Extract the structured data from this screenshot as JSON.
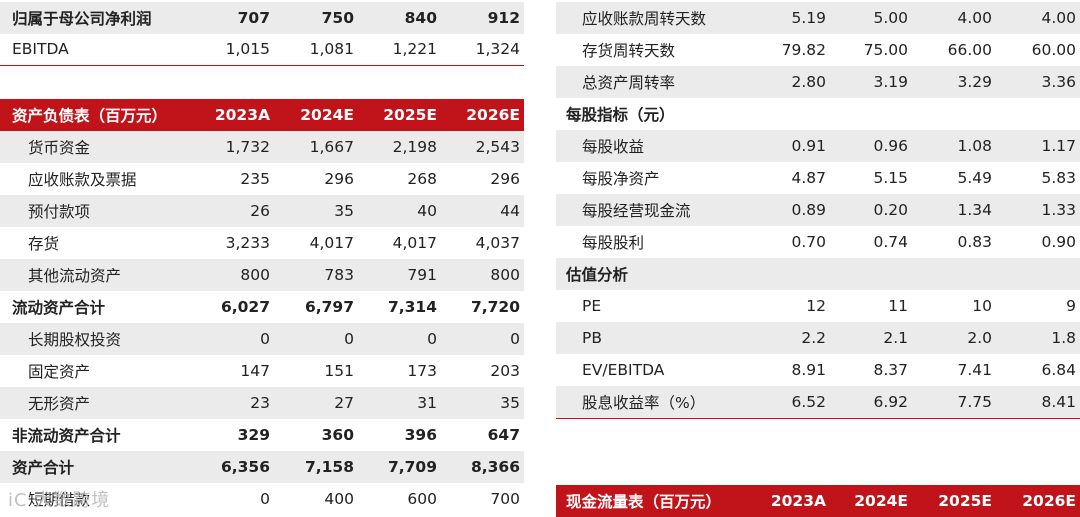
{
  "left": {
    "top_rows": [
      {
        "label": "归属于母公司净利润",
        "values": [
          "707",
          "750",
          "840",
          "912"
        ],
        "style": "bold-stripe"
      },
      {
        "label": "EBITDA",
        "values": [
          "1,015",
          "1,081",
          "1,221",
          "1,324"
        ],
        "style": "plain-line"
      }
    ],
    "balance_header": {
      "title": "资产负债表（百万元）",
      "years": [
        "2023A",
        "2024E",
        "2025E",
        "2026E"
      ]
    },
    "balance_rows": [
      {
        "label": "货币资金",
        "values": [
          "1,732",
          "1,667",
          "2,198",
          "2,543"
        ],
        "indent": true,
        "stripe": true,
        "bold": false
      },
      {
        "label": "应收账款及票据",
        "values": [
          "235",
          "296",
          "268",
          "296"
        ],
        "indent": true,
        "stripe": false,
        "bold": false
      },
      {
        "label": "预付款项",
        "values": [
          "26",
          "35",
          "40",
          "44"
        ],
        "indent": true,
        "stripe": true,
        "bold": false
      },
      {
        "label": "存货",
        "values": [
          "3,233",
          "4,017",
          "4,017",
          "4,037"
        ],
        "indent": true,
        "stripe": false,
        "bold": false
      },
      {
        "label": "其他流动资产",
        "values": [
          "800",
          "783",
          "791",
          "800"
        ],
        "indent": true,
        "stripe": true,
        "bold": false
      },
      {
        "label": "流动资产合计",
        "values": [
          "6,027",
          "6,797",
          "7,314",
          "7,720"
        ],
        "indent": false,
        "stripe": false,
        "bold": true
      },
      {
        "label": "长期股权投资",
        "values": [
          "0",
          "0",
          "0",
          "0"
        ],
        "indent": true,
        "stripe": true,
        "bold": false
      },
      {
        "label": "固定资产",
        "values": [
          "147",
          "151",
          "173",
          "203"
        ],
        "indent": true,
        "stripe": false,
        "bold": false
      },
      {
        "label": "无形资产",
        "values": [
          "23",
          "27",
          "31",
          "35"
        ],
        "indent": true,
        "stripe": true,
        "bold": false
      },
      {
        "label": "非流动资产合计",
        "values": [
          "329",
          "360",
          "396",
          "647"
        ],
        "indent": false,
        "stripe": false,
        "bold": true
      },
      {
        "label": "资产合计",
        "values": [
          "6,356",
          "7,158",
          "7,709",
          "8,366"
        ],
        "indent": false,
        "stripe": true,
        "bold": true
      },
      {
        "label": "短期借款",
        "values": [
          "0",
          "400",
          "600",
          "700"
        ],
        "indent": true,
        "stripe": false,
        "bold": false
      }
    ]
  },
  "right": {
    "rows": [
      {
        "label": "应收账款周转天数",
        "values": [
          "5.19",
          "5.00",
          "4.00",
          "4.00"
        ],
        "indent": true,
        "stripe": true,
        "bold": false
      },
      {
        "label": "存货周转天数",
        "values": [
          "79.82",
          "75.00",
          "66.00",
          "60.00"
        ],
        "indent": true,
        "stripe": false,
        "bold": false
      },
      {
        "label": "总资产周转率",
        "values": [
          "2.80",
          "3.19",
          "3.29",
          "3.36"
        ],
        "indent": true,
        "stripe": true,
        "bold": false
      },
      {
        "label": "每股指标（元）",
        "values": [
          "",
          "",
          "",
          ""
        ],
        "indent": false,
        "stripe": false,
        "bold": true
      },
      {
        "label": "每股收益",
        "values": [
          "0.91",
          "0.96",
          "1.08",
          "1.17"
        ],
        "indent": true,
        "stripe": true,
        "bold": false
      },
      {
        "label": "每股净资产",
        "values": [
          "4.87",
          "5.15",
          "5.49",
          "5.83"
        ],
        "indent": true,
        "stripe": false,
        "bold": false
      },
      {
        "label": "每股经营现金流",
        "values": [
          "0.89",
          "0.20",
          "1.34",
          "1.33"
        ],
        "indent": true,
        "stripe": true,
        "bold": false
      },
      {
        "label": "每股股利",
        "values": [
          "0.70",
          "0.74",
          "0.83",
          "0.90"
        ],
        "indent": true,
        "stripe": false,
        "bold": false
      },
      {
        "label": "估值分析",
        "values": [
          "",
          "",
          "",
          ""
        ],
        "indent": false,
        "stripe": true,
        "bold": true
      },
      {
        "label": "PE",
        "values": [
          "12",
          "11",
          "10",
          "9"
        ],
        "indent": true,
        "stripe": false,
        "bold": false
      },
      {
        "label": "PB",
        "values": [
          "2.2",
          "2.1",
          "2.0",
          "1.8"
        ],
        "indent": true,
        "stripe": true,
        "bold": false
      },
      {
        "label": "EV/EBITDA",
        "values": [
          "8.91",
          "8.37",
          "7.41",
          "6.84"
        ],
        "indent": true,
        "stripe": false,
        "bold": false
      },
      {
        "label": "股息收益率（%）",
        "values": [
          "6.52",
          "6.92",
          "7.75",
          "8.41"
        ],
        "indent": true,
        "stripe": true,
        "bold": false
      }
    ],
    "cashflow_header": {
      "title": "现金流量表（百万元）",
      "years": [
        "2023A",
        "2024E",
        "2025E",
        "2026E"
      ]
    }
  },
  "watermark": "iC 犬数跨境",
  "colors": {
    "accent": "#c0131a",
    "stripe": "#ebebeb"
  }
}
